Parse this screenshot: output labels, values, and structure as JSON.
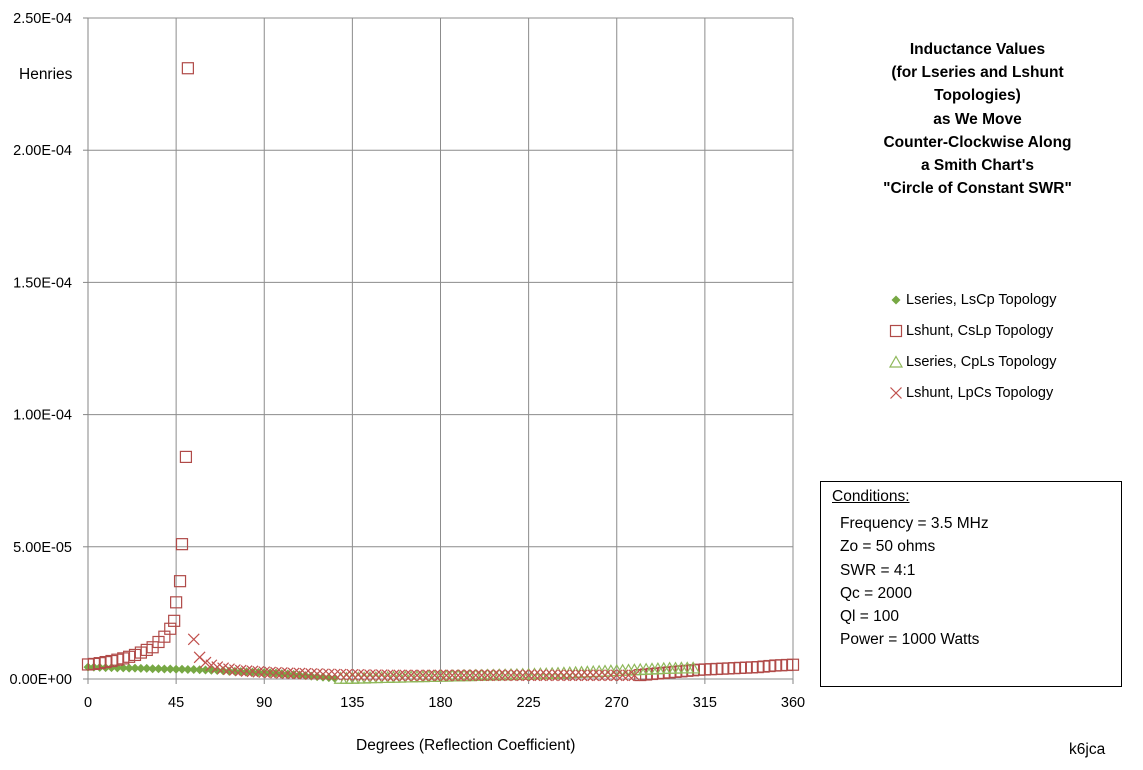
{
  "title_lines": [
    "Inductance Values",
    "(for Lseries and Lshunt",
    "Topologies)",
    "as We Move",
    "Counter-Clockwise Along",
    "a Smith Chart's",
    "\"Circle of Constant SWR\""
  ],
  "y_unit_label": "Henries",
  "x_axis_label": "Degrees (Reflection Coefficient)",
  "credit": "k6jca",
  "legend": [
    {
      "label": "Lseries, LsCp Topology",
      "marker": "diamond-filled",
      "color": "#77a844"
    },
    {
      "label": "Lshunt, CsLp Topology",
      "marker": "square-open",
      "color": "#b04a48"
    },
    {
      "label": "Lseries, CpLs Topology",
      "marker": "triangle-open",
      "color": "#8fb85a"
    },
    {
      "label": "Lshunt, LpCs Topology",
      "marker": "x-cross",
      "color": "#c0504d"
    }
  ],
  "conditions": {
    "heading": "Conditions:",
    "lines": [
      "Frequency = 3.5 MHz",
      "Zo = 50 ohms",
      "SWR = 4:1",
      "Qc = 2000",
      "Ql =  100",
      "Power = 1000 Watts"
    ]
  },
  "chart_data": {
    "type": "scatter",
    "xlim": [
      0,
      360
    ],
    "ylim": [
      0,
      0.00025
    ],
    "x_ticks": [
      0,
      45,
      90,
      135,
      180,
      225,
      270,
      315,
      360
    ],
    "y_ticks": [
      0,
      5e-05,
      0.0001,
      0.00015,
      0.0002,
      0.00025
    ],
    "x_tick_labels": [
      "0",
      "45",
      "90",
      "135",
      "180",
      "225",
      "270",
      "315",
      "360"
    ],
    "y_tick_labels": [
      "0.00E+00",
      "5.00E-05",
      "1.00E-04",
      "1.50E-04",
      "2.00E-04",
      "2.50E-04"
    ],
    "grid": true,
    "legend_position": "right",
    "series": [
      {
        "name": "Lseries, LsCp Topology",
        "x": [
          0,
          3,
          6,
          9,
          12,
          15,
          18,
          21,
          24,
          27,
          30,
          33,
          36,
          39,
          42,
          45,
          48,
          51,
          54,
          57,
          60,
          63,
          66,
          69,
          72,
          75,
          78,
          81,
          84,
          87,
          90,
          93,
          96,
          99,
          102,
          105,
          108,
          111,
          114,
          117,
          120,
          123,
          126
        ],
        "y": [
          4.5e-06,
          4.5e-06,
          4.4e-06,
          4.3e-06,
          4.3e-06,
          4.2e-06,
          4.2e-06,
          4.1e-06,
          4.1e-06,
          4e-06,
          4e-06,
          3.9e-06,
          3.9e-06,
          3.8e-06,
          3.8e-06,
          3.7e-06,
          3.7e-06,
          3.6e-06,
          3.6e-06,
          3.5e-06,
          3.4e-06,
          3.3e-06,
          3.2e-06,
          3.1e-06,
          3e-06,
          2.9e-06,
          2.8e-06,
          2.7e-06,
          2.6e-06,
          2.5e-06,
          2.4e-06,
          2.3e-06,
          2.2e-06,
          2e-06,
          1.9e-06,
          1.7e-06,
          1.5e-06,
          1.3e-06,
          1.1e-06,
          9e-07,
          7e-07,
          5e-07,
          3e-07
        ]
      },
      {
        "name": "Lshunt, CsLp Topology",
        "x": [
          0,
          3,
          6,
          9,
          12,
          15,
          18,
          21,
          24,
          27,
          30,
          33,
          36,
          39,
          42,
          44,
          45,
          47,
          48,
          50,
          51,
          282,
          285,
          288,
          291,
          294,
          297,
          300,
          303,
          306,
          309,
          312,
          315,
          318,
          321,
          324,
          327,
          330,
          333,
          336,
          339,
          342,
          345,
          348,
          351,
          354,
          357,
          360
        ],
        "y": [
          5.5e-06,
          5.7e-06,
          6e-06,
          6.4e-06,
          6.8e-06,
          7.3e-06,
          7.8e-06,
          8.4e-06,
          9.1e-06,
          1e-05,
          1.1e-05,
          1.2e-05,
          1.4e-05,
          1.6e-05,
          1.9e-05,
          2.2e-05,
          2.9e-05,
          3.7e-05,
          5.1e-05,
          8.4e-05,
          0.000231,
          1.5e-06,
          1.7e-06,
          1.9e-06,
          2.1e-06,
          2.3e-06,
          2.5e-06,
          2.7e-06,
          2.9e-06,
          3.1e-06,
          3.3e-06,
          3.5e-06,
          3.6e-06,
          3.7e-06,
          3.8e-06,
          3.9e-06,
          4e-06,
          4.1e-06,
          4.2e-06,
          4.3e-06,
          4.4e-06,
          4.5e-06,
          4.7e-06,
          4.9e-06,
          5.1e-06,
          5.2e-06,
          5.3e-06,
          5.4e-06
        ]
      },
      {
        "name": "Lseries, CpLs Topology",
        "x": [
          129,
          132,
          135,
          138,
          141,
          144,
          147,
          150,
          153,
          156,
          159,
          162,
          165,
          168,
          171,
          174,
          177,
          180,
          183,
          186,
          189,
          192,
          195,
          198,
          201,
          204,
          207,
          210,
          213,
          216,
          219,
          222,
          225,
          228,
          231,
          234,
          237,
          240,
          243,
          246,
          249,
          252,
          255,
          258,
          261,
          264,
          267,
          270,
          273,
          276,
          279,
          282,
          285,
          288,
          291,
          294,
          297,
          300,
          303,
          306,
          309
        ],
        "y": [
          1e-07,
          1e-07,
          1e-07,
          2e-07,
          2e-07,
          3e-07,
          3e-07,
          4e-07,
          4e-07,
          5e-07,
          5e-07,
          6e-07,
          6e-07,
          7e-07,
          7e-07,
          8e-07,
          8e-07,
          9e-07,
          9e-07,
          1e-06,
          1e-06,
          1.1e-06,
          1.1e-06,
          1.2e-06,
          1.2e-06,
          1.3e-06,
          1.3e-06,
          1.4e-06,
          1.4e-06,
          1.5e-06,
          1.5e-06,
          1.6e-06,
          1.6e-06,
          1.7e-06,
          1.8e-06,
          1.8e-06,
          1.9e-06,
          2e-06,
          2.1e-06,
          2.2e-06,
          2.3e-06,
          2.4e-06,
          2.5e-06,
          2.6e-06,
          2.7e-06,
          2.8e-06,
          2.9e-06,
          3e-06,
          3.1e-06,
          3.2e-06,
          3.3e-06,
          3.4e-06,
          3.5e-06,
          3.6e-06,
          3.7e-06,
          3.8e-06,
          3.9e-06,
          3.9e-06,
          4e-06,
          4e-06,
          4e-06
        ]
      },
      {
        "name": "Lshunt, LpCs Topology",
        "x": [
          54,
          57,
          60,
          63,
          66,
          69,
          72,
          75,
          78,
          81,
          84,
          87,
          90,
          93,
          96,
          99,
          102,
          105,
          108,
          111,
          114,
          117,
          120,
          123,
          126,
          129,
          132,
          135,
          138,
          141,
          144,
          147,
          150,
          153,
          156,
          159,
          162,
          165,
          168,
          171,
          174,
          177,
          180,
          183,
          186,
          189,
          192,
          195,
          198,
          201,
          204,
          207,
          210,
          213,
          216,
          219,
          222,
          225,
          228,
          231,
          234,
          237,
          240,
          243,
          246,
          249,
          252,
          255,
          258,
          261,
          264,
          267,
          270,
          273,
          276,
          279
        ],
        "y": [
          1.5e-05,
          8.2e-06,
          6.2e-06,
          5.2e-06,
          4.5e-06,
          4.1e-06,
          3.7e-06,
          3.4e-06,
          3.2e-06,
          3e-06,
          2.9e-06,
          2.7e-06,
          2.6e-06,
          2.5e-06,
          2.4e-06,
          2.3e-06,
          2.2e-06,
          2.1e-06,
          2.1e-06,
          2e-06,
          1.9e-06,
          1.9e-06,
          1.8e-06,
          1.8e-06,
          1.7e-06,
          1.7e-06,
          1.6e-06,
          1.6e-06,
          1.6e-06,
          1.5e-06,
          1.5e-06,
          1.5e-06,
          1.5e-06,
          1.4e-06,
          1.4e-06,
          1.4e-06,
          1.4e-06,
          1.4e-06,
          1.4e-06,
          1.4e-06,
          1.4e-06,
          1.4e-06,
          1.4e-06,
          1.4e-06,
          1.4e-06,
          1.4e-06,
          1.4e-06,
          1.4e-06,
          1.4e-06,
          1.4e-06,
          1.4e-06,
          1.4e-06,
          1.4e-06,
          1.4e-06,
          1.4e-06,
          1.4e-06,
          1.4e-06,
          1.4e-06,
          1.4e-06,
          1.4e-06,
          1.4e-06,
          1.4e-06,
          1.4e-06,
          1.4e-06,
          1.4e-06,
          1.4e-06,
          1.4e-06,
          1.4e-06,
          1.4e-06,
          1.4e-06,
          1.4e-06,
          1.4e-06,
          1.4e-06,
          1.4e-06,
          1.4e-06,
          1.4e-06
        ]
      }
    ]
  }
}
